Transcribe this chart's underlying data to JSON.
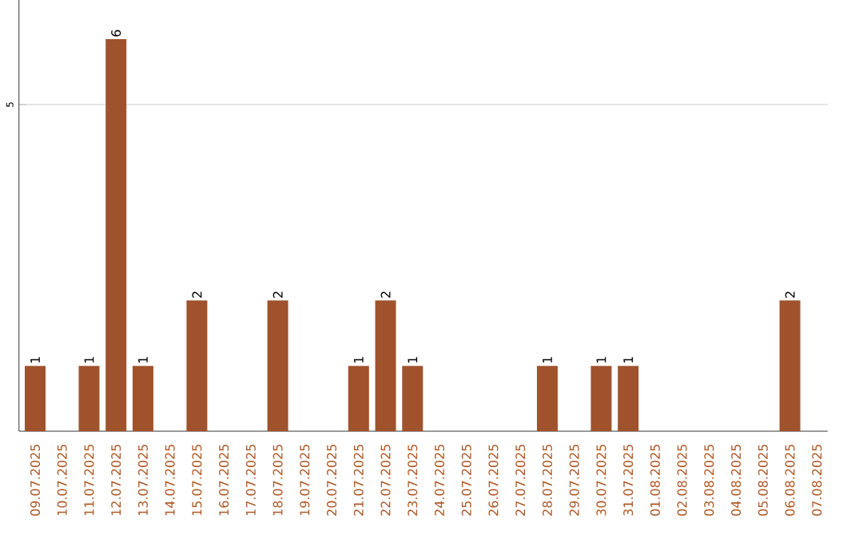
{
  "chart_data": {
    "type": "bar",
    "categories": [
      "09.07.2025",
      "10.07.2025",
      "11.07.2025",
      "12.07.2025",
      "13.07.2025",
      "14.07.2025",
      "15.07.2025",
      "16.07.2025",
      "17.07.2025",
      "18.07.2025",
      "19.07.2025",
      "20.07.2025",
      "21.07.2025",
      "22.07.2025",
      "23.07.2025",
      "24.07.2025",
      "25.07.2025",
      "26.07.2025",
      "27.07.2025",
      "28.07.2025",
      "29.07.2025",
      "30.07.2025",
      "31.07.2025",
      "01.08.2025",
      "02.08.2025",
      "03.08.2025",
      "04.08.2025",
      "05.08.2025",
      "06.08.2025",
      "07.08.2025"
    ],
    "values": [
      1,
      0,
      1,
      6,
      1,
      0,
      2,
      0,
      0,
      2,
      0,
      0,
      1,
      2,
      1,
      0,
      0,
      0,
      0,
      1,
      0,
      1,
      1,
      0,
      0,
      0,
      0,
      0,
      2,
      0
    ],
    "value_labels": [
      "1",
      null,
      "1",
      "6",
      "1",
      null,
      "2",
      null,
      null,
      "2",
      null,
      null,
      "1",
      "2",
      "1",
      null,
      null,
      null,
      null,
      "1",
      null,
      "1",
      "1",
      null,
      null,
      null,
      null,
      null,
      "2",
      null
    ],
    "color": "#a0522d",
    "ylim": [
      0,
      6.6
    ],
    "yticks": [
      5
    ],
    "grid": "y"
  }
}
